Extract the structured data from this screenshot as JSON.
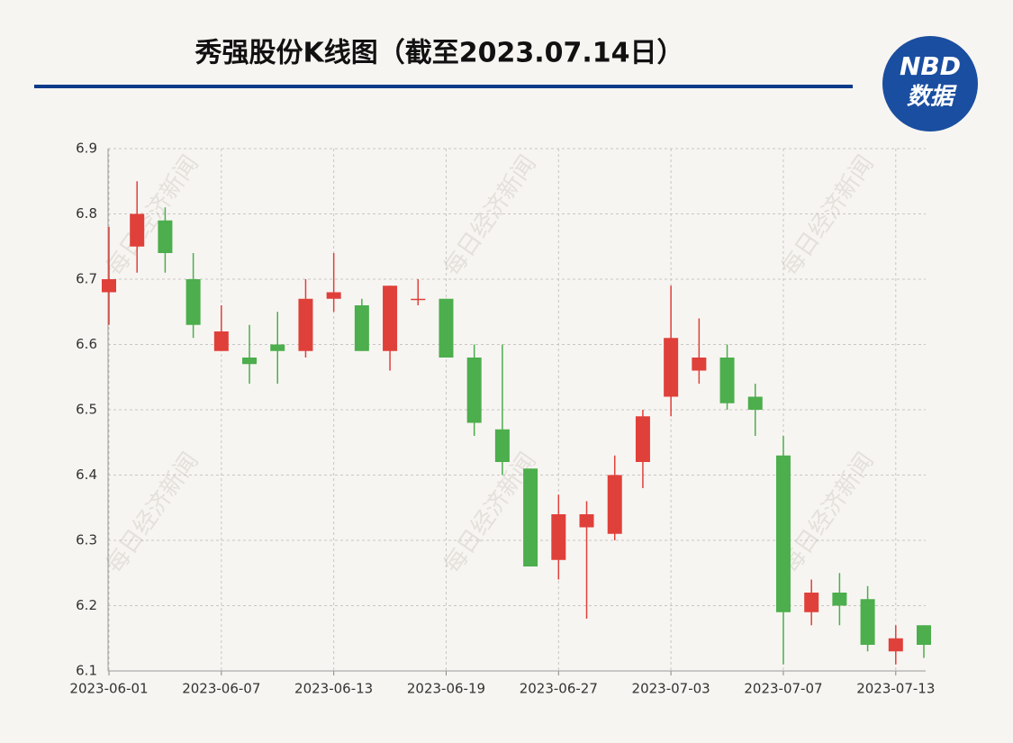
{
  "chart_data": {
    "type": "candlestick",
    "title": "秀强股份K线图（截至2023.07.14日）",
    "logo": {
      "top": "NBD",
      "bottom": "数据"
    },
    "watermark": "每日经济新闻",
    "categories": [
      "2023-06-01",
      null,
      null,
      null,
      "2023-06-07",
      null,
      null,
      null,
      "2023-06-13",
      null,
      null,
      null,
      "2023-06-19",
      null,
      null,
      null,
      "2023-06-27",
      null,
      null,
      null,
      "2023-07-03",
      null,
      null,
      null,
      "2023-07-07",
      null,
      null,
      null,
      "2023-07-13",
      null
    ],
    "series": [
      {
        "name": "open",
        "values": [
          6.68,
          6.75,
          6.79,
          6.7,
          6.59,
          6.58,
          6.6,
          6.59,
          6.67,
          6.66,
          6.59,
          6.67,
          6.67,
          6.58,
          6.47,
          6.41,
          6.27,
          6.32,
          6.31,
          6.42,
          6.52,
          6.56,
          6.58,
          6.52,
          6.43,
          6.19,
          6.22,
          6.21,
          6.13,
          6.17
        ]
      },
      {
        "name": "high",
        "values": [
          6.78,
          6.85,
          6.81,
          6.74,
          6.66,
          6.63,
          6.65,
          6.7,
          6.74,
          6.67,
          6.69,
          6.7,
          6.67,
          6.6,
          6.6,
          6.41,
          6.37,
          6.36,
          6.43,
          6.5,
          6.69,
          6.64,
          6.6,
          6.54,
          6.46,
          6.24,
          6.25,
          6.23,
          6.17,
          6.17
        ]
      },
      {
        "name": "low",
        "values": [
          6.63,
          6.71,
          6.71,
          6.61,
          6.59,
          6.54,
          6.54,
          6.58,
          6.65,
          6.59,
          6.56,
          6.66,
          6.58,
          6.46,
          6.4,
          6.26,
          6.24,
          6.18,
          6.3,
          6.38,
          6.49,
          6.54,
          6.5,
          6.46,
          6.11,
          6.17,
          6.17,
          6.13,
          6.11,
          6.12
        ]
      },
      {
        "name": "close",
        "values": [
          6.7,
          6.8,
          6.74,
          6.63,
          6.62,
          6.57,
          6.59,
          6.67,
          6.68,
          6.59,
          6.69,
          6.67,
          6.58,
          6.48,
          6.42,
          6.26,
          6.34,
          6.34,
          6.4,
          6.49,
          6.61,
          6.58,
          6.51,
          6.5,
          6.19,
          6.22,
          6.2,
          6.14,
          6.15,
          6.14
        ]
      }
    ],
    "up_color": "#e0403a",
    "down_color": "#4cae4c",
    "ylim": [
      6.1,
      6.9
    ],
    "yticks": [
      6.1,
      6.2,
      6.3,
      6.4,
      6.5,
      6.6,
      6.7,
      6.8,
      6.9
    ],
    "grid": true
  }
}
